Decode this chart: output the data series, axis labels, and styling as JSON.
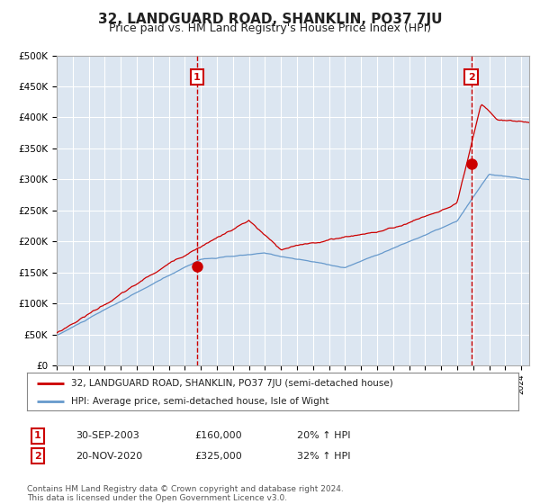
{
  "title": "32, LANDGUARD ROAD, SHANKLIN, PO37 7JU",
  "subtitle": "Price paid vs. HM Land Registry's House Price Index (HPI)",
  "title_fontsize": 11,
  "subtitle_fontsize": 9,
  "plot_bg_color": "#dce6f1",
  "fig_bg_color": "#ffffff",
  "ylim": [
    0,
    500000
  ],
  "yticks": [
    0,
    50000,
    100000,
    150000,
    200000,
    250000,
    300000,
    350000,
    400000,
    450000,
    500000
  ],
  "ytick_labels": [
    "£0",
    "£50K",
    "£100K",
    "£150K",
    "£200K",
    "£250K",
    "£300K",
    "£350K",
    "£400K",
    "£450K",
    "£500K"
  ],
  "red_line_color": "#cc0000",
  "blue_line_color": "#6699cc",
  "marker_color": "#cc0000",
  "vline_color": "#cc0000",
  "grid_color": "#ffffff",
  "annotation_box_color": "#cc0000",
  "legend_label_red": "32, LANDGUARD ROAD, SHANKLIN, PO37 7JU (semi-detached house)",
  "legend_label_blue": "HPI: Average price, semi-detached house, Isle of Wight",
  "transaction1_label": "1",
  "transaction1_date": "30-SEP-2003",
  "transaction1_price": "£160,000",
  "transaction1_hpi": "20% ↑ HPI",
  "transaction1_year": 2003.75,
  "transaction1_value": 160000,
  "transaction2_label": "2",
  "transaction2_date": "20-NOV-2020",
  "transaction2_price": "£325,000",
  "transaction2_hpi": "32% ↑ HPI",
  "transaction2_year": 2020.88,
  "transaction2_value": 325000,
  "footer_text": "Contains HM Land Registry data © Crown copyright and database right 2024.\nThis data is licensed under the Open Government Licence v3.0.",
  "xstart": 1995.0,
  "xend": 2024.5
}
